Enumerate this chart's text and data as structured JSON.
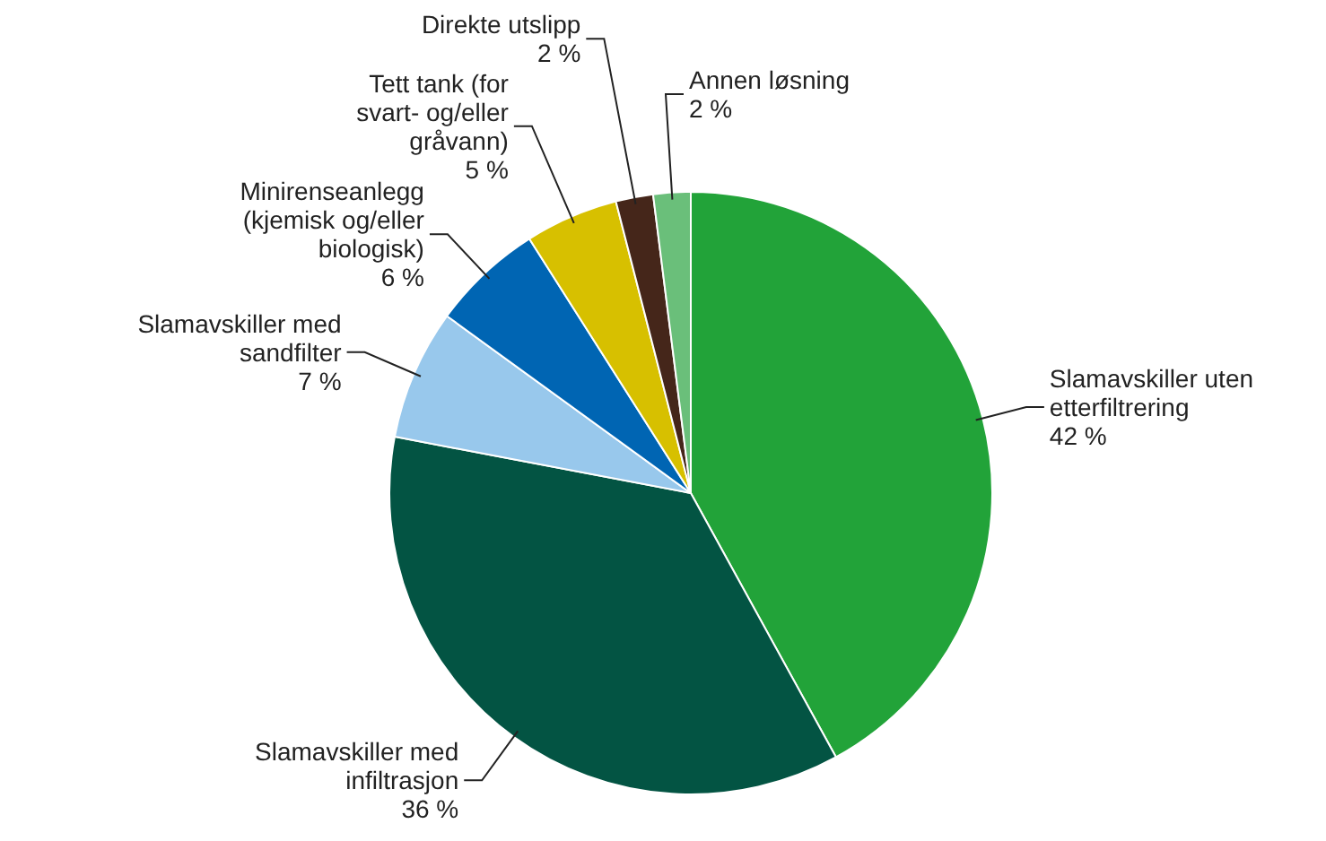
{
  "chart_data": {
    "type": "pie",
    "categories": [
      "Slamavskiller uten etterfiltrering",
      "Slamavskiller med infiltrasjon",
      "Slamavskiller med sandfilter",
      "Minirenseanlegg (kjemisk og/eller biologisk)",
      "Tett tank (for svart- og/eller gråvann)",
      "Direkte utslipp",
      "Annen løsning"
    ],
    "values": [
      42,
      36,
      7,
      6,
      5,
      2,
      2
    ],
    "colors": [
      "#22a339",
      "#035443",
      "#98c8ec",
      "#0065b3",
      "#d7c000",
      "#45261a",
      "#6abf7a"
    ],
    "value_labels": [
      "42 %",
      "36 %",
      "7 %",
      "6 %",
      "5 %",
      "2 %",
      "2 %"
    ]
  }
}
